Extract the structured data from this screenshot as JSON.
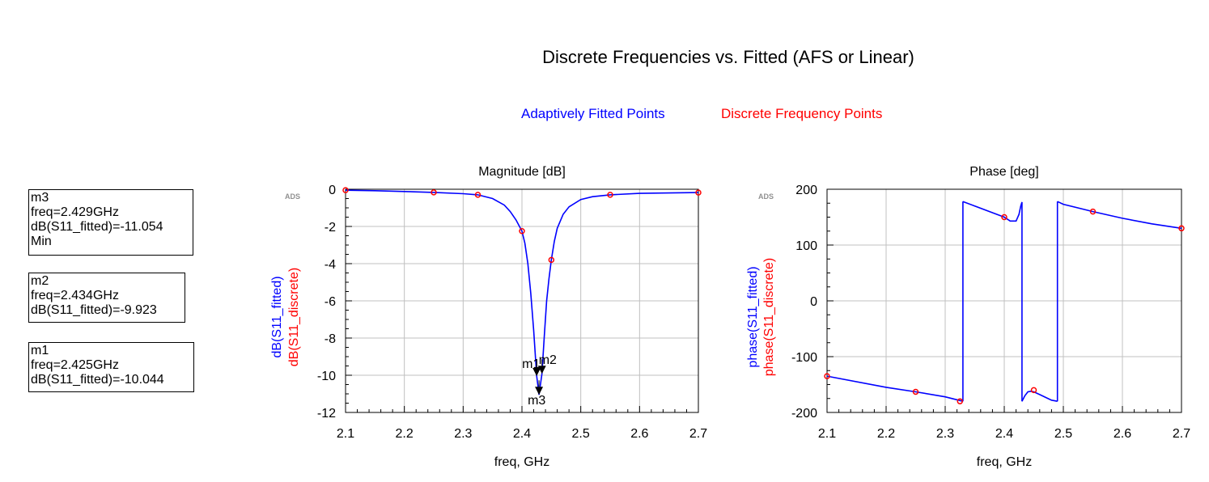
{
  "page_title": "Discrete Frequencies vs. Fitted (AFS or Linear)",
  "legend": {
    "fitted": {
      "label": "Adaptively Fitted Points",
      "color": "#0000ff"
    },
    "discrete": {
      "label": "Discrete Frequency Points",
      "color": "#ff0000"
    }
  },
  "markers": [
    {
      "name": "m3",
      "freq": "freq=2.429GHz",
      "value": "dB(S11_fitted)=-11.054",
      "note": "Min"
    },
    {
      "name": "m2",
      "freq": "freq=2.434GHz",
      "value": "dB(S11_fitted)=-9.923"
    },
    {
      "name": "m1",
      "freq": "freq=2.425GHz",
      "value": "dB(S11_fitted)=-10.044"
    }
  ],
  "chart_data": [
    {
      "type": "line",
      "title": "Magnitude [dB]",
      "watermark": "ADS",
      "xlabel": "freq, GHz",
      "ylabel_fitted": "dB(S11_fitted)",
      "ylabel_discrete": "dB(S11_discrete)",
      "xlim": [
        2.1,
        2.7
      ],
      "ylim": [
        -12,
        0
      ],
      "xticks": [
        "2.1",
        "2.2",
        "2.3",
        "2.4",
        "2.5",
        "2.6",
        "2.7"
      ],
      "yticks": [
        "0",
        "-2",
        "-4",
        "-6",
        "-8",
        "-10",
        "-12"
      ],
      "grid": true,
      "series": [
        {
          "name": "dB(S11_fitted)",
          "color": "#0000ff",
          "style": "line",
          "x": [
            2.1,
            2.15,
            2.2,
            2.25,
            2.3,
            2.325,
            2.35,
            2.37,
            2.38,
            2.39,
            2.4,
            2.405,
            2.41,
            2.415,
            2.42,
            2.425,
            2.429,
            2.434,
            2.438,
            2.442,
            2.446,
            2.45,
            2.455,
            2.46,
            2.47,
            2.48,
            2.5,
            2.52,
            2.55,
            2.6,
            2.65,
            2.7
          ],
          "y": [
            -0.05,
            -0.08,
            -0.12,
            -0.17,
            -0.24,
            -0.3,
            -0.5,
            -0.85,
            -1.2,
            -1.65,
            -2.25,
            -2.9,
            -4.0,
            -5.6,
            -7.6,
            -10.04,
            -11.05,
            -9.92,
            -7.9,
            -6.0,
            -4.8,
            -3.8,
            -2.8,
            -2.1,
            -1.35,
            -0.95,
            -0.55,
            -0.4,
            -0.3,
            -0.22,
            -0.2,
            -0.18
          ]
        },
        {
          "name": "dB(S11_discrete)",
          "color": "#ff0000",
          "style": "circles",
          "x": [
            2.1,
            2.25,
            2.325,
            2.4,
            2.45,
            2.55,
            2.7
          ],
          "y": [
            -0.05,
            -0.17,
            -0.3,
            -2.25,
            -3.8,
            -0.3,
            -0.18
          ]
        }
      ],
      "markers": [
        {
          "label": "m1",
          "x": 2.425,
          "y": -10.044
        },
        {
          "label": "m2",
          "x": 2.434,
          "y": -9.923
        },
        {
          "label": "m3",
          "x": 2.429,
          "y": -11.054
        }
      ]
    },
    {
      "type": "line",
      "title": "Phase [deg]",
      "watermark": "ADS",
      "xlabel": "freq, GHz",
      "ylabel_fitted": "phase(S11_fitted)",
      "ylabel_discrete": "phase(S11_discrete)",
      "xlim": [
        2.1,
        2.7
      ],
      "ylim": [
        -200,
        200
      ],
      "xticks": [
        "2.1",
        "2.2",
        "2.3",
        "2.4",
        "2.5",
        "2.6",
        "2.7"
      ],
      "yticks": [
        "200",
        "100",
        "0",
        "-100",
        "-200"
      ],
      "grid": true,
      "series": [
        {
          "name": "phase(S11_fitted)",
          "color": "#0000ff",
          "style": "line",
          "segments": [
            {
              "x": [
                2.1,
                2.2,
                2.25,
                2.3,
                2.33
              ],
              "y": [
                -135,
                -155,
                -163,
                -172,
                -180
              ]
            },
            {
              "x": [
                2.33,
                2.35,
                2.38,
                2.4,
                2.41,
                2.42,
                2.425,
                2.428,
                2.43
              ],
              "y": [
                178,
                170,
                158,
                150,
                143,
                143,
                155,
                170,
                177
              ]
            },
            {
              "x": [
                2.43,
                2.435,
                2.44,
                2.445,
                2.45,
                2.46,
                2.47,
                2.48,
                2.49
              ],
              "y": [
                -180,
                -170,
                -163,
                -162,
                -163,
                -168,
                -173,
                -178,
                -180
              ]
            },
            {
              "x": [
                2.49,
                2.5,
                2.55,
                2.6,
                2.65,
                2.7
              ],
              "y": [
                178,
                173,
                160,
                148,
                138,
                130
              ]
            }
          ]
        },
        {
          "name": "phase(S11_discrete)",
          "color": "#ff0000",
          "style": "circles",
          "x": [
            2.1,
            2.25,
            2.325,
            2.4,
            2.45,
            2.55,
            2.7
          ],
          "y": [
            -135,
            -163,
            -180,
            150,
            -160,
            160,
            130
          ]
        }
      ]
    }
  ]
}
